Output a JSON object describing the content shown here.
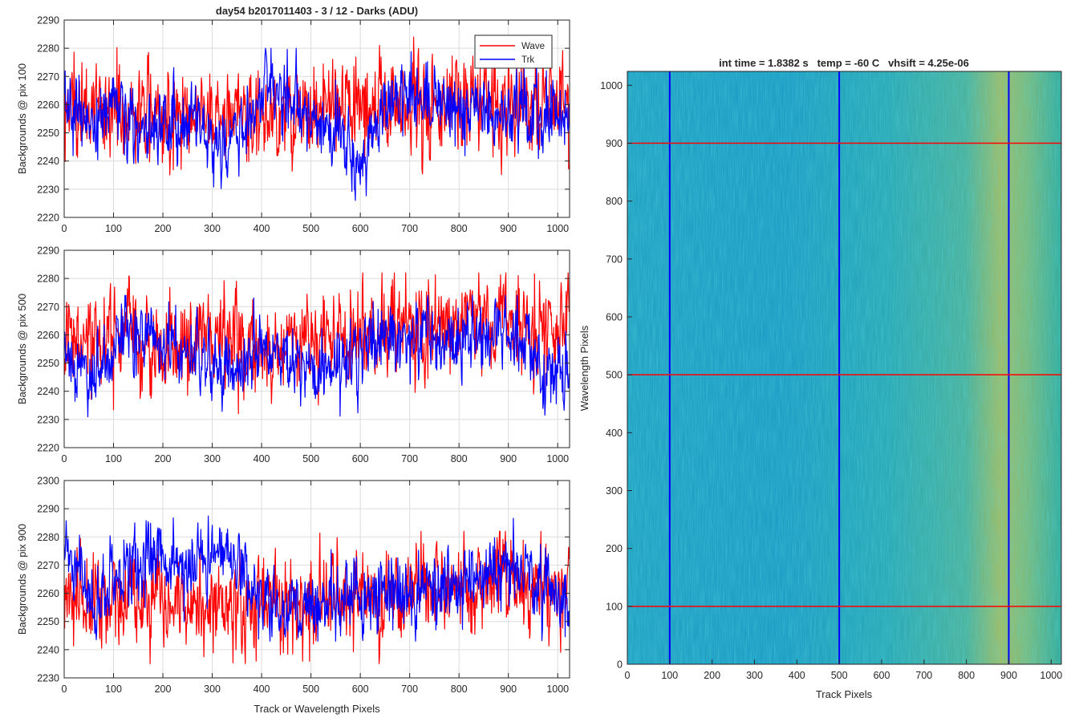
{
  "figure": {
    "title": "day54 b2017011403 - 3 / 12 - Darks (ADU)",
    "background": "#ffffff"
  },
  "chart_data": [
    {
      "type": "line",
      "title": "day54 b2017011403 - 3 / 12 - Darks (ADU)",
      "xlabel": "",
      "ylabel": "Backgrounds @ pix 100",
      "xlim": [
        0,
        1024
      ],
      "ylim": [
        2220,
        2290
      ],
      "xticks": [
        0,
        100,
        200,
        300,
        400,
        500,
        600,
        700,
        800,
        900,
        1000
      ],
      "yticks": [
        2220,
        2230,
        2240,
        2250,
        2260,
        2270,
        2280,
        2290
      ],
      "grid": true,
      "legend": {
        "position": "top-right",
        "entries": [
          "Wave",
          "Trk"
        ]
      },
      "series": [
        {
          "name": "Wave",
          "color": "#ff0000",
          "mean": 2258,
          "noise": 8,
          "min": 2232,
          "max": 2284,
          "trend": [
            [
              0,
              2258
            ],
            [
              200,
              2257
            ],
            [
              400,
              2257
            ],
            [
              600,
              2259
            ],
            [
              800,
              2261
            ],
            [
              1023,
              2262
            ]
          ]
        },
        {
          "name": "Trk",
          "color": "#0000ff",
          "mean": 2256,
          "noise": 6,
          "min": 2226,
          "max": 2280,
          "trend": [
            [
              0,
              2262
            ],
            [
              50,
              2250
            ],
            [
              100,
              2262
            ],
            [
              150,
              2252
            ],
            [
              250,
              2254
            ],
            [
              310,
              2242
            ],
            [
              350,
              2250
            ],
            [
              420,
              2268
            ],
            [
              460,
              2260
            ],
            [
              560,
              2250
            ],
            [
              600,
              2238
            ],
            [
              650,
              2262
            ],
            [
              720,
              2262
            ],
            [
              800,
              2256
            ],
            [
              900,
              2258
            ],
            [
              1023,
              2256
            ]
          ]
        }
      ]
    },
    {
      "type": "line",
      "xlabel": "",
      "ylabel": "Backgrounds @ pix 500",
      "xlim": [
        0,
        1024
      ],
      "ylim": [
        2220,
        2290
      ],
      "xticks": [
        0,
        100,
        200,
        300,
        400,
        500,
        600,
        700,
        800,
        900,
        1000
      ],
      "yticks": [
        2220,
        2230,
        2240,
        2250,
        2260,
        2270,
        2280,
        2290
      ],
      "grid": true,
      "series": [
        {
          "name": "Wave",
          "color": "#ff0000",
          "mean": 2258,
          "noise": 8,
          "min": 2232,
          "max": 2282,
          "trend": [
            [
              0,
              2256
            ],
            [
              200,
              2256
            ],
            [
              400,
              2257
            ],
            [
              600,
              2261
            ],
            [
              800,
              2264
            ],
            [
              1023,
              2262
            ]
          ]
        },
        {
          "name": "Trk",
          "color": "#0000ff",
          "mean": 2254,
          "noise": 6,
          "min": 2229,
          "max": 2274,
          "trend": [
            [
              0,
              2252
            ],
            [
              60,
              2245
            ],
            [
              150,
              2264
            ],
            [
              220,
              2256
            ],
            [
              320,
              2247
            ],
            [
              420,
              2256
            ],
            [
              500,
              2248
            ],
            [
              580,
              2254
            ],
            [
              650,
              2258
            ],
            [
              720,
              2262
            ],
            [
              800,
              2255
            ],
            [
              900,
              2262
            ],
            [
              980,
              2248
            ],
            [
              1023,
              2250
            ]
          ]
        }
      ]
    },
    {
      "type": "line",
      "xlabel": "Track or Wavelength Pixels",
      "ylabel": "Backgrounds @ pix 900",
      "xlim": [
        0,
        1024
      ],
      "ylim": [
        2230,
        2300
      ],
      "xticks": [
        0,
        100,
        200,
        300,
        400,
        500,
        600,
        700,
        800,
        900,
        1000
      ],
      "yticks": [
        2230,
        2240,
        2250,
        2260,
        2270,
        2280,
        2290,
        2300
      ],
      "grid": true,
      "series": [
        {
          "name": "Wave",
          "color": "#ff0000",
          "mean": 2257,
          "noise": 8,
          "min": 2235,
          "max": 2282,
          "trend": [
            [
              0,
              2260
            ],
            [
              200,
              2255
            ],
            [
              400,
              2256
            ],
            [
              600,
              2258
            ],
            [
              800,
              2262
            ],
            [
              1023,
              2262
            ]
          ]
        },
        {
          "name": "Trk",
          "color": "#0000ff",
          "mean": 2264,
          "noise": 6,
          "min": 2243,
          "max": 2293,
          "trend": [
            [
              0,
              2276
            ],
            [
              60,
              2258
            ],
            [
              180,
              2276
            ],
            [
              250,
              2266
            ],
            [
              330,
              2276
            ],
            [
              400,
              2258
            ],
            [
              450,
              2254
            ],
            [
              560,
              2258
            ],
            [
              700,
              2262
            ],
            [
              800,
              2262
            ],
            [
              900,
              2270
            ],
            [
              950,
              2266
            ],
            [
              1023,
              2254
            ]
          ]
        }
      ]
    },
    {
      "type": "heatmap",
      "title": "int time = 1.8382 s   temp = -60 C   vhsift = 4.25e-06",
      "xlabel": "Track Pixels",
      "ylabel": "Wavelength Pixels",
      "xlim": [
        0,
        1024
      ],
      "ylim": [
        0,
        1024
      ],
      "xticks": [
        0,
        100,
        200,
        300,
        400,
        500,
        600,
        700,
        800,
        900,
        1000
      ],
      "yticks": [
        0,
        100,
        200,
        300,
        400,
        500,
        600,
        700,
        800,
        900,
        1000
      ],
      "colormap": "parula",
      "colors": {
        "low": "#1fa5c2",
        "mid": "#33b2a8",
        "high": "#b7c055"
      },
      "vertical_markers": {
        "color": "#0000ff",
        "x": [
          100,
          500,
          900
        ]
      },
      "horizontal_markers": {
        "color": "#ff0000",
        "y": [
          100,
          500,
          900
        ]
      }
    }
  ]
}
